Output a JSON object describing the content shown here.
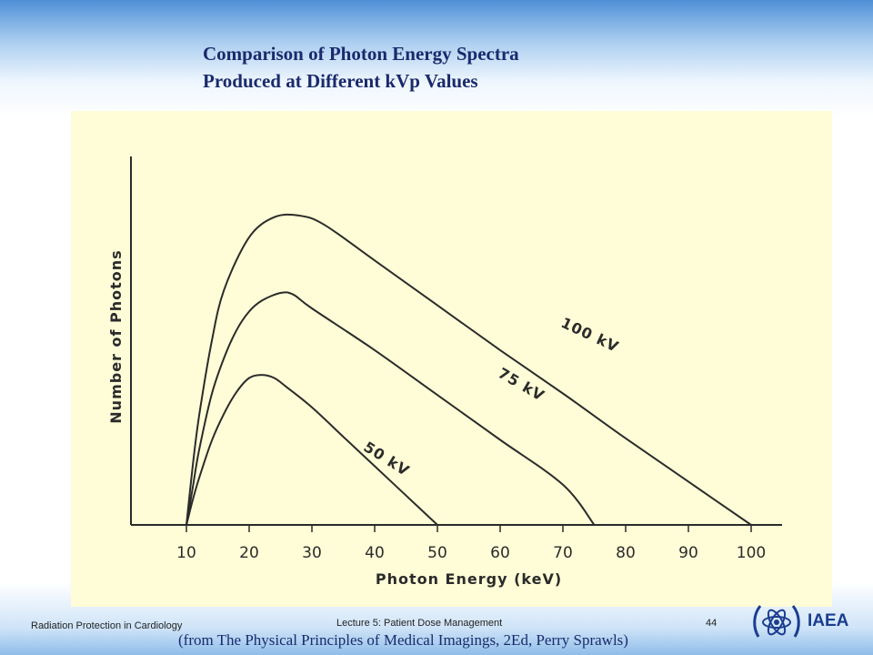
{
  "slide": {
    "title_line1": "Comparison of Photon Energy Spectra",
    "title_line2": "Produced at Different kVp Values",
    "footer_left": "Radiation Protection in Cardiology",
    "footer_center": "Lecture 5: Patient Dose Management",
    "page_number": "44",
    "source": "(from The Physical Principles of Medical Imagings, 2Ed, Perry Sprawls)",
    "logo_text": "IAEA",
    "accent_color": "#1a2a6c",
    "panel_color": "#fefdd7"
  },
  "chart_data": {
    "type": "line",
    "title": "",
    "xlabel": "Photon Energy (keV)",
    "ylabel": "Number of Photons",
    "xlim": [
      10,
      100
    ],
    "ylim": [
      0,
      100
    ],
    "xticks": [
      10,
      20,
      30,
      40,
      50,
      60,
      70,
      80,
      90,
      100
    ],
    "grid": false,
    "legend": "none (series labelled along curves)",
    "series": [
      {
        "name": "100 kV",
        "x": [
          10,
          11,
          12,
          14,
          16,
          20,
          24,
          28,
          32,
          40,
          50,
          60,
          70,
          80,
          90,
          100
        ],
        "y": [
          0,
          19,
          35,
          59,
          76,
          93,
          99.5,
          100,
          97,
          85.5,
          71,
          56.5,
          42.5,
          28,
          14,
          0
        ]
      },
      {
        "name": "75 kV",
        "x": [
          10,
          11,
          12,
          14,
          16,
          18,
          20,
          22,
          25,
          27,
          30,
          40,
          50,
          60,
          70,
          75
        ],
        "y": [
          0,
          12,
          24,
          42,
          54,
          63,
          69,
          72.5,
          75,
          74.5,
          70,
          56.5,
          42,
          27.5,
          13,
          0
        ]
      },
      {
        "name": "50 kV",
        "x": [
          10,
          11,
          12,
          14,
          16,
          18,
          20,
          22,
          24,
          26,
          30,
          35,
          40,
          45,
          50
        ],
        "y": [
          0,
          8,
          15,
          27,
          36,
          43,
          47.5,
          48.5,
          47.5,
          44.5,
          38,
          28.5,
          19,
          9.5,
          0
        ]
      }
    ]
  }
}
